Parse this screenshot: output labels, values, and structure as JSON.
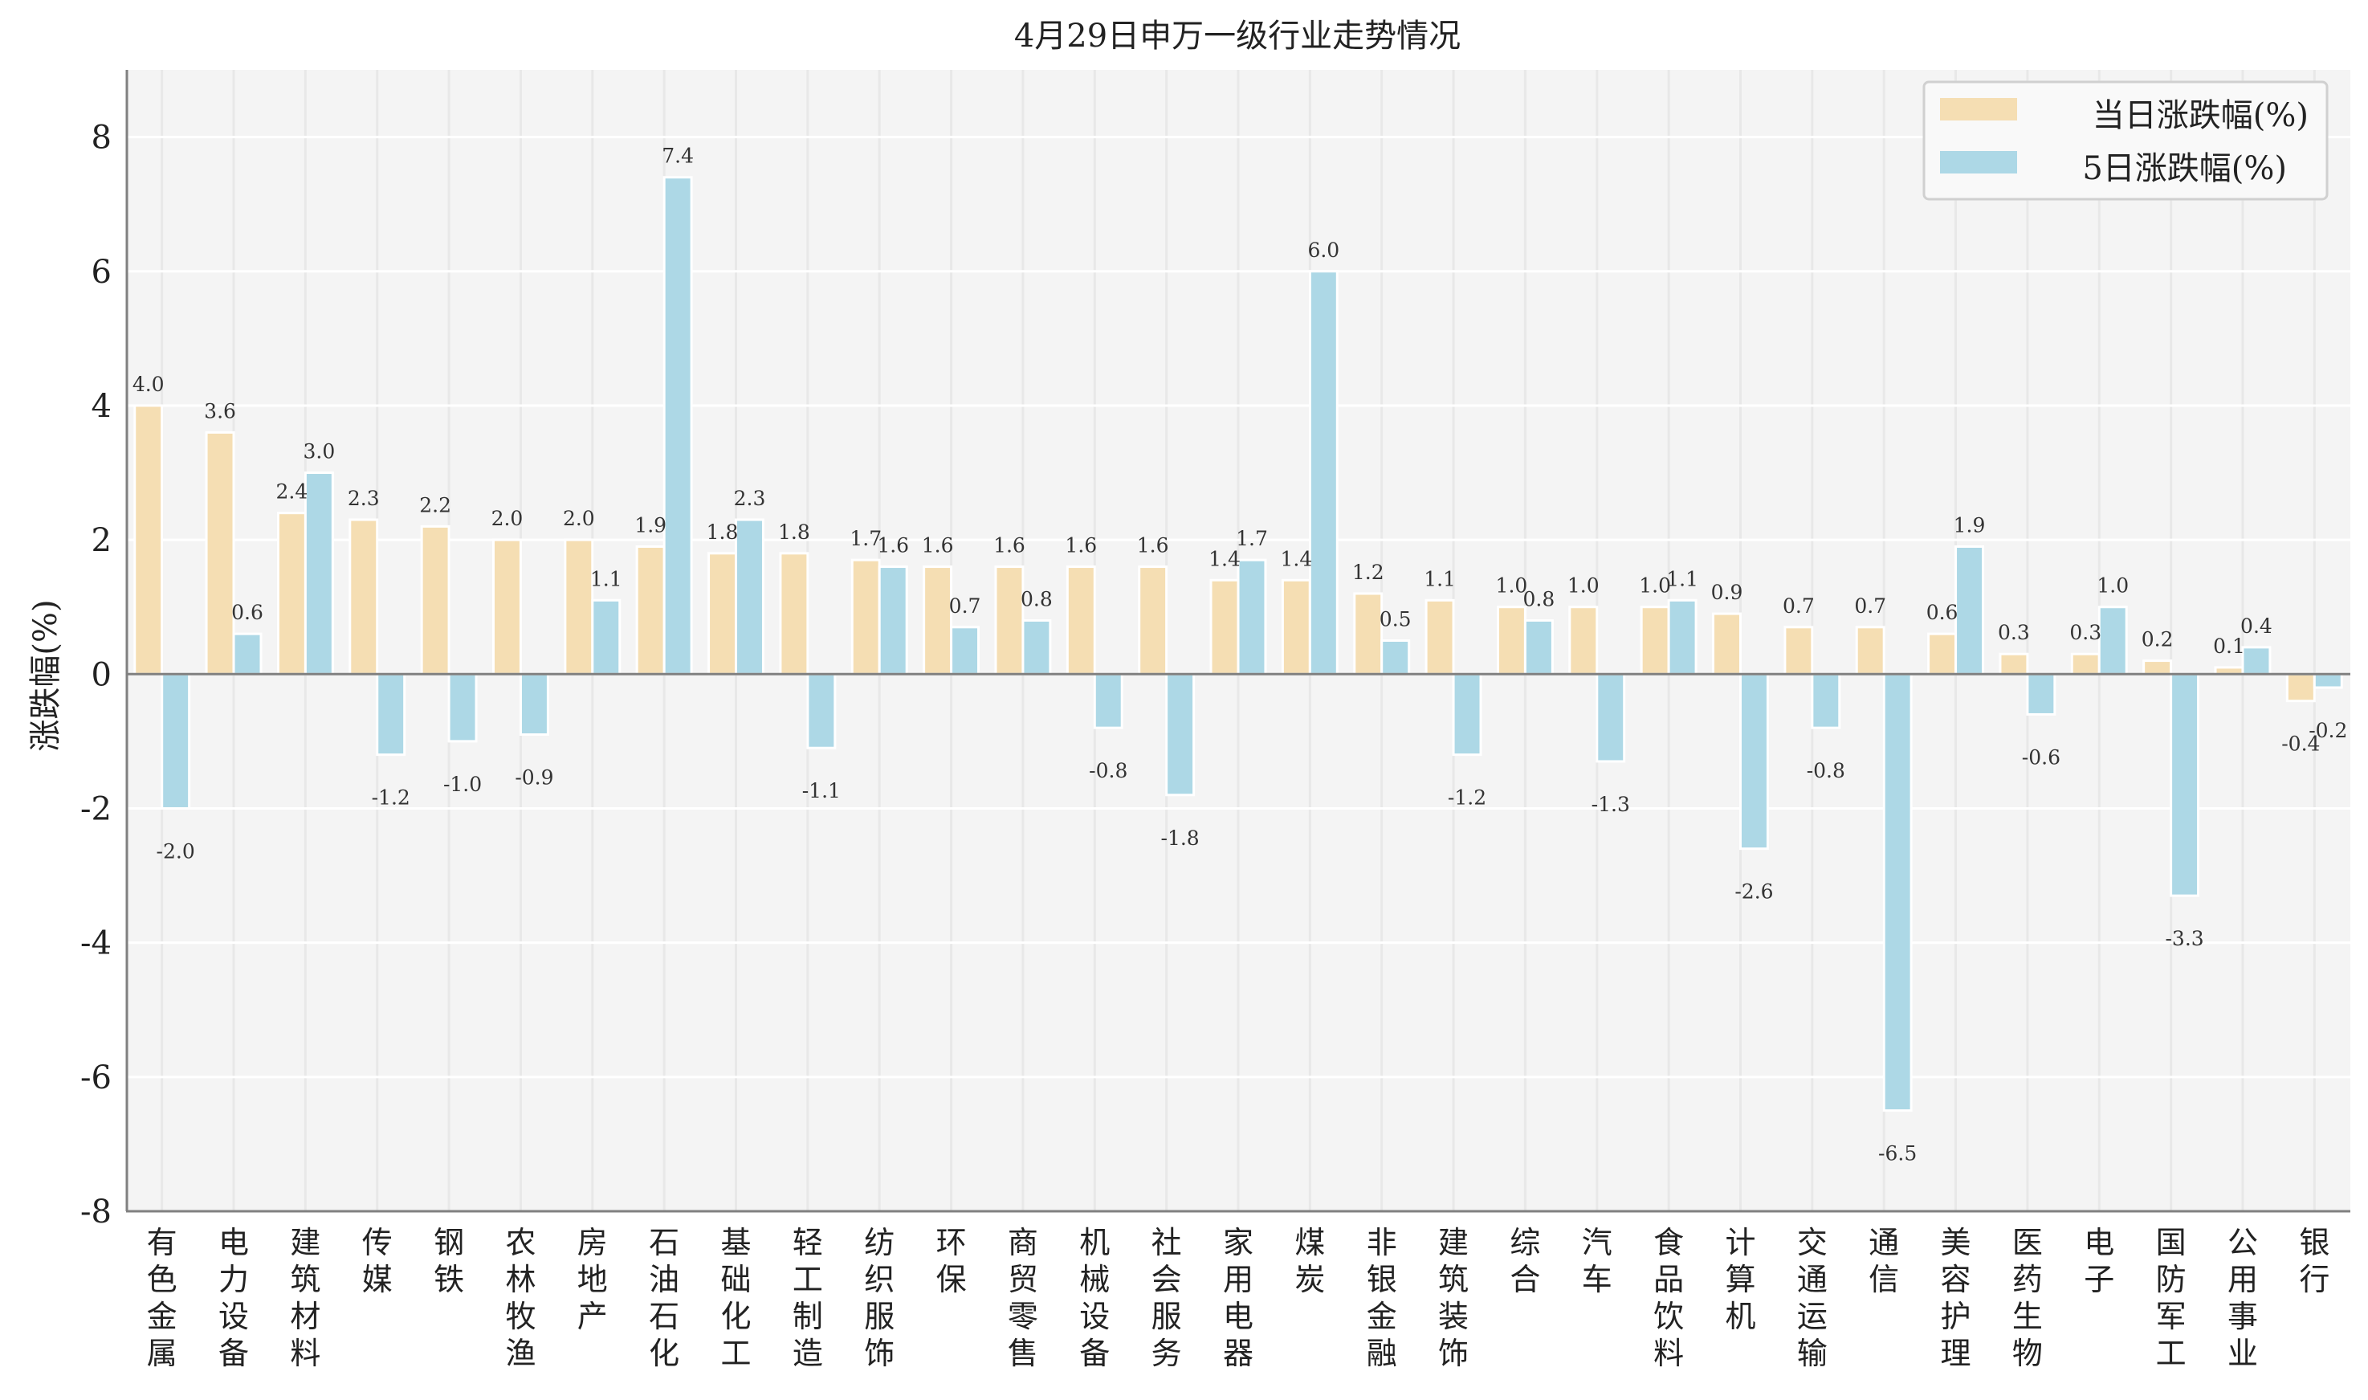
{
  "chart_data": {
    "type": "bar",
    "title": "4月29日申万一级行业走势情况",
    "xlabel": "",
    "ylabel": "涨跌幅(%)",
    "ylim": [
      -8,
      9
    ],
    "yticks": [
      -8,
      -6,
      -4,
      -2,
      0,
      2,
      4,
      6,
      8
    ],
    "grid": true,
    "legend_position": "top-right",
    "categories": [
      "有色金属",
      "电力设备",
      "建筑材料",
      "传媒",
      "钢铁",
      "农林牧渔",
      "房地产",
      "石油石化",
      "基础化工",
      "轻工制造",
      "纺织服饰",
      "环保",
      "商贸零售",
      "机械设备",
      "社会服务",
      "家用电器",
      "煤炭",
      "非银金融",
      "建筑装饰",
      "综合",
      "汽车",
      "食品饮料",
      "计算机",
      "交通运输",
      "通信",
      "美容护理",
      "医药生物",
      "电子",
      "国防军工",
      "公用事业",
      "银行"
    ],
    "series": [
      {
        "name": "当日涨跌幅(%)",
        "color": "#f5deb3",
        "values": [
          4.0,
          3.6,
          2.4,
          2.3,
          2.2,
          2.0,
          2.0,
          1.9,
          1.8,
          1.8,
          1.7,
          1.6,
          1.6,
          1.6,
          1.6,
          1.4,
          1.4,
          1.2,
          1.1,
          1.0,
          1.0,
          1.0,
          0.9,
          0.7,
          0.7,
          0.6,
          0.3,
          0.3,
          0.2,
          0.1,
          -0.4
        ]
      },
      {
        "name": "5日涨跌幅(%)",
        "color": "#add8e6",
        "values": [
          -2.0,
          0.6,
          3.0,
          -1.2,
          -1.0,
          -0.9,
          1.1,
          7.4,
          2.3,
          -1.1,
          1.6,
          0.7,
          0.8,
          -0.8,
          -1.8,
          1.7,
          6.0,
          0.5,
          -1.2,
          0.8,
          -1.3,
          1.1,
          -2.6,
          -0.8,
          -6.5,
          1.9,
          -0.6,
          1.0,
          -3.3,
          0.4,
          -0.2
        ]
      }
    ]
  }
}
